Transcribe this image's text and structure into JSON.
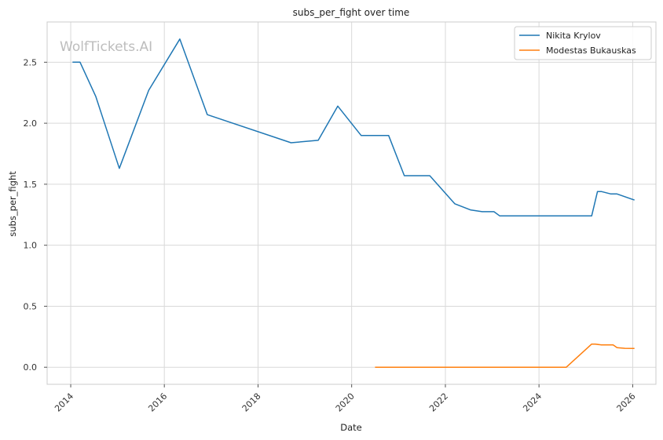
{
  "chart_data": {
    "type": "line",
    "title": "subs_per_fight over time",
    "xlabel": "Date",
    "ylabel": "subs_per_fight",
    "watermark": "WolfTickets.AI",
    "xlim": [
      "2013-07-01",
      "2026-07-01"
    ],
    "ylim": [
      -0.14,
      2.83
    ],
    "x_ticks": [
      "2014-01-01",
      "2016-01-01",
      "2018-01-01",
      "2020-01-01",
      "2022-01-01",
      "2024-01-01",
      "2026-01-01"
    ],
    "x_tick_labels": [
      "2014",
      "2016",
      "2018",
      "2020",
      "2022",
      "2024",
      "2026"
    ],
    "y_ticks": [
      0.0,
      0.5,
      1.0,
      1.5,
      2.0,
      2.5
    ],
    "y_tick_labels": [
      "0.0",
      "0.5",
      "1.0",
      "1.5",
      "2.0",
      "2.5"
    ],
    "grid": true,
    "legend_position": "top-right",
    "series": [
      {
        "name": "Nikita Krylov",
        "color": "#1f77b4",
        "points": [
          [
            "2014-01-15",
            2.5
          ],
          [
            "2014-03-15",
            2.5
          ],
          [
            "2014-07-15",
            2.22
          ],
          [
            "2015-01-15",
            1.63
          ],
          [
            "2015-09-01",
            2.27
          ],
          [
            "2016-05-01",
            2.69
          ],
          [
            "2016-12-01",
            2.07
          ],
          [
            "2018-09-15",
            1.84
          ],
          [
            "2019-04-15",
            1.86
          ],
          [
            "2019-09-15",
            2.14
          ],
          [
            "2020-03-15",
            1.9
          ],
          [
            "2020-10-15",
            1.9
          ],
          [
            "2021-02-15",
            1.57
          ],
          [
            "2021-09-01",
            1.57
          ],
          [
            "2022-03-15",
            1.34
          ],
          [
            "2022-07-15",
            1.29
          ],
          [
            "2022-10-15",
            1.275
          ],
          [
            "2023-01-15",
            1.275
          ],
          [
            "2023-03-01",
            1.24
          ],
          [
            "2025-02-15",
            1.24
          ],
          [
            "2025-04-01",
            1.44
          ],
          [
            "2025-05-01",
            1.44
          ],
          [
            "2025-07-15",
            1.42
          ],
          [
            "2025-09-01",
            1.42
          ],
          [
            "2026-01-15",
            1.37
          ]
        ]
      },
      {
        "name": "Modestas Bukauskas",
        "color": "#ff7f0e",
        "points": [
          [
            "2020-07-01",
            0.0
          ],
          [
            "2024-08-01",
            0.0
          ],
          [
            "2025-02-15",
            0.19
          ],
          [
            "2025-03-15",
            0.19
          ],
          [
            "2025-05-01",
            0.183
          ],
          [
            "2025-08-01",
            0.183
          ],
          [
            "2025-09-01",
            0.16
          ],
          [
            "2025-11-01",
            0.155
          ],
          [
            "2026-01-15",
            0.154
          ]
        ]
      }
    ]
  }
}
